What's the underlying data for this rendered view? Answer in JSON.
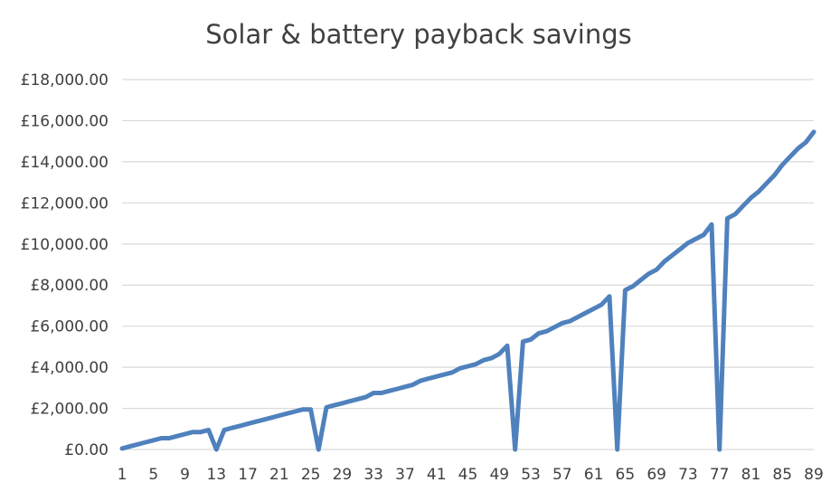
{
  "chart_data": {
    "type": "line",
    "title": "Solar & battery payback savings",
    "xlabel": "",
    "ylabel": "",
    "x": [
      1,
      2,
      3,
      4,
      5,
      6,
      7,
      8,
      9,
      10,
      11,
      12,
      13,
      14,
      15,
      16,
      17,
      18,
      19,
      20,
      21,
      22,
      23,
      24,
      25,
      26,
      27,
      28,
      29,
      30,
      31,
      32,
      33,
      34,
      35,
      36,
      37,
      38,
      39,
      40,
      41,
      42,
      43,
      44,
      45,
      46,
      47,
      48,
      49,
      50,
      51,
      52,
      53,
      54,
      55,
      56,
      57,
      58,
      59,
      60,
      61,
      62,
      63,
      64,
      65,
      66,
      67,
      68,
      69,
      70,
      71,
      72,
      73,
      74,
      75,
      76,
      77,
      78,
      79,
      80,
      81,
      82,
      83,
      84,
      85,
      86,
      87,
      88,
      89
    ],
    "x_tick_labels": [
      "1",
      "5",
      "9",
      "13",
      "17",
      "21",
      "25",
      "29",
      "33",
      "37",
      "41",
      "45",
      "49",
      "53",
      "57",
      "61",
      "65",
      "69",
      "73",
      "77",
      "81",
      "85",
      "89"
    ],
    "y_tick_labels": [
      "£0.00",
      "£2,000.00",
      "£4,000.00",
      "£6,000.00",
      "£8,000.00",
      "£10,000.00",
      "£12,000.00",
      "£14,000.00",
      "£16,000.00",
      "£18,000.00"
    ],
    "ylim": [
      0,
      18000
    ],
    "grid": true,
    "legend": "none",
    "series": [
      {
        "color": "#4f81bd",
        "values": [
          50,
          150,
          250,
          350,
          450,
          550,
          550,
          650,
          750,
          850,
          850,
          950,
          0,
          950,
          1050,
          1150,
          1250,
          1350,
          1450,
          1550,
          1650,
          1750,
          1850,
          1950,
          1950,
          0,
          2050,
          2150,
          2250,
          2350,
          2450,
          2550,
          2750,
          2750,
          2850,
          2950,
          3050,
          3150,
          3350,
          3450,
          3550,
          3650,
          3750,
          3950,
          4050,
          4150,
          4350,
          4450,
          4650,
          5050,
          0,
          5250,
          5350,
          5650,
          5750,
          5950,
          6150,
          6250,
          6450,
          6650,
          6850,
          7050,
          7450,
          0,
          7750,
          7950,
          8250,
          8550,
          8750,
          9150,
          9450,
          9750,
          10050,
          10250,
          10450,
          10950,
          0,
          11250,
          11450,
          11850,
          12250,
          12550,
          12950,
          13350,
          13850,
          14250,
          14650,
          14950,
          15450
        ]
      }
    ]
  }
}
